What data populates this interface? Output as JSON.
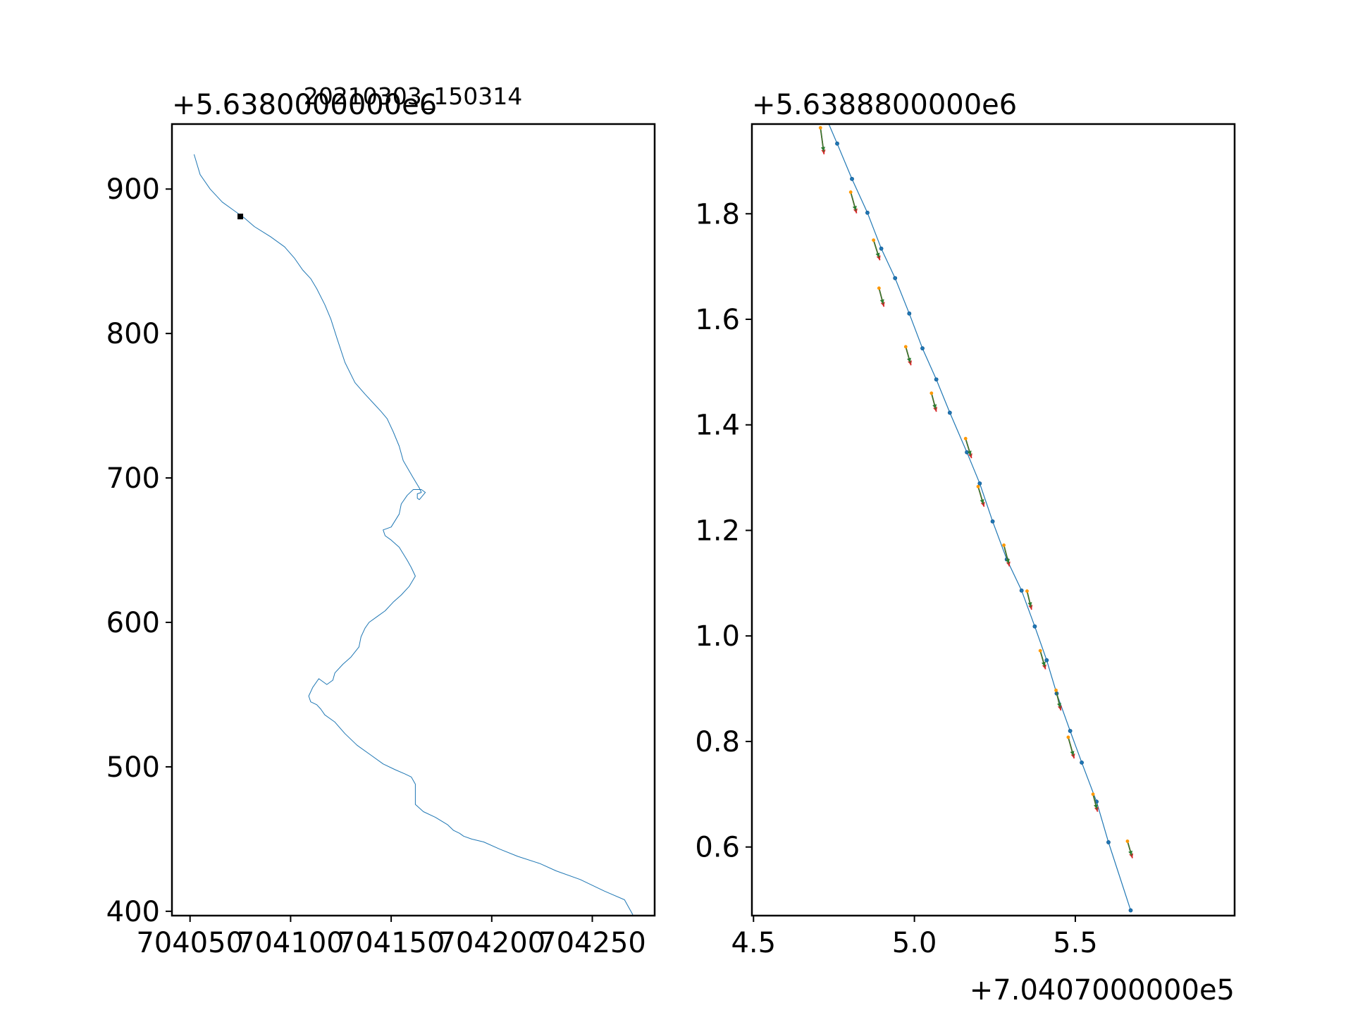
{
  "chart_data": [
    {
      "type": "line",
      "title": "20210303_150314",
      "offset_x": "",
      "offset_y": "+5.6380000000e6",
      "xlim": [
        704041,
        704281
      ],
      "ylim": [
        397,
        945
      ],
      "x_ticks": [
        704050,
        704100,
        704150,
        704200,
        704250
      ],
      "x_tick_labels": [
        "704050",
        "704100",
        "704150",
        "704200",
        "704250"
      ],
      "y_ticks": [
        400,
        500,
        600,
        700,
        800,
        900
      ],
      "y_tick_labels": [
        "400",
        "500",
        "600",
        "700",
        "800",
        "900"
      ],
      "grid": false,
      "series": [
        {
          "color": "#1f77b4",
          "x": [
            704052,
            704055,
            704060,
            704066,
            704072,
            704075,
            704077,
            704082,
            704090,
            704097,
            704102,
            704106,
            704110,
            704113,
            704117,
            704120,
            704123,
            704127,
            704132,
            704137,
            704141,
            704145,
            704148,
            704151,
            704154,
            704156,
            704161,
            704164,
            704165,
            704163,
            704163,
            704164,
            704167,
            704165,
            704161,
            704158,
            704155,
            704154,
            704150,
            704146,
            704147,
            704150,
            704154,
            704158,
            704160,
            704162,
            704159,
            704155,
            704151,
            704147,
            704143,
            704139,
            704137,
            704135,
            704134,
            704130,
            704126,
            704122,
            704121,
            704118,
            704114,
            704111,
            704109,
            704110,
            704113,
            704115,
            704117,
            704122,
            704127,
            704133,
            704140,
            704146,
            704152,
            704157,
            704160,
            704162,
            704162,
            704162,
            704166,
            704172,
            704178,
            704181,
            704184,
            704186,
            704190,
            704196,
            704204,
            704213,
            704224,
            704232,
            704244,
            704256,
            704266,
            704270,
            704271,
            704267,
            704268,
            704270
          ],
          "y": [
            924,
            910,
            900,
            891,
            885,
            882,
            880,
            874,
            867,
            860,
            852,
            844,
            838,
            831,
            820,
            810,
            797,
            780,
            766,
            758,
            752,
            746,
            741,
            732,
            722,
            712,
            700,
            693,
            690,
            689,
            686,
            685,
            690,
            692,
            692,
            688,
            682,
            675,
            666,
            664,
            660,
            657,
            652,
            643,
            638,
            632,
            625,
            619,
            614,
            608,
            604,
            600,
            596,
            590,
            583,
            576,
            571,
            565,
            560,
            557,
            561,
            555,
            549,
            545,
            543,
            540,
            536,
            531,
            523,
            515,
            508,
            502,
            498,
            495,
            493,
            488,
            480,
            474,
            469,
            465,
            460,
            456,
            454,
            452,
            450,
            448,
            443,
            438,
            433,
            428,
            422,
            414,
            408,
            398,
            393,
            386,
            384,
            384
          ]
        }
      ],
      "annotations": [
        {
          "type": "marker",
          "x": 704075,
          "y": 881,
          "color": "#000000"
        }
      ]
    },
    {
      "type": "line",
      "title": "",
      "offset_x": "+7.0407000000e5",
      "offset_y": "+5.6388800000e6",
      "xlim": [
        4.495,
        5.995
      ],
      "ylim": [
        0.47,
        1.97
      ],
      "x_ticks": [
        4.5,
        5.0,
        5.5
      ],
      "x_tick_labels": [
        "4.5",
        "5.0",
        "5.5"
      ],
      "y_ticks": [
        0.6,
        0.8,
        1.0,
        1.2,
        1.4,
        1.6,
        1.8
      ],
      "y_tick_labels": [
        "0.6",
        "0.8",
        "1.0",
        "1.2",
        "1.4",
        "1.6",
        "1.8"
      ],
      "grid": false,
      "series": [
        {
          "color": "#1f77b4",
          "x": [
            4.72,
            4.76,
            4.806,
            4.854,
            4.897,
            4.94,
            4.984,
            5.025,
            5.068,
            5.11,
            5.163,
            5.203,
            5.243,
            5.287,
            5.333,
            5.374,
            5.411,
            5.442,
            5.484,
            5.52,
            5.566,
            5.603,
            5.672
          ],
          "y": [
            1.99,
            1.933,
            1.866,
            1.802,
            1.734,
            1.678,
            1.611,
            1.545,
            1.486,
            1.423,
            1.348,
            1.289,
            1.217,
            1.145,
            1.086,
            1.018,
            0.954,
            0.891,
            0.82,
            0.76,
            0.686,
            0.609,
            0.48
          ],
          "markers": true
        }
      ],
      "arrows": [
        {
          "x": 4.708,
          "y": 1.963,
          "dx": 0.01,
          "dy": -0.045
        },
        {
          "x": 4.802,
          "y": 1.841,
          "dx": 0.016,
          "dy": -0.035
        },
        {
          "x": 4.873,
          "y": 1.75,
          "dx": 0.017,
          "dy": -0.033
        },
        {
          "x": 4.89,
          "y": 1.659,
          "dx": 0.013,
          "dy": -0.03
        },
        {
          "x": 4.973,
          "y": 1.548,
          "dx": 0.014,
          "dy": -0.03
        },
        {
          "x": 5.053,
          "y": 1.46,
          "dx": 0.013,
          "dy": -0.03
        },
        {
          "x": 5.159,
          "y": 1.374,
          "dx": 0.016,
          "dy": -0.032
        },
        {
          "x": 5.198,
          "y": 1.283,
          "dx": 0.016,
          "dy": -0.033
        },
        {
          "x": 5.278,
          "y": 1.172,
          "dx": 0.015,
          "dy": -0.035
        },
        {
          "x": 5.35,
          "y": 1.085,
          "dx": 0.012,
          "dy": -0.03
        },
        {
          "x": 5.391,
          "y": 0.972,
          "dx": 0.014,
          "dy": -0.03
        },
        {
          "x": 5.44,
          "y": 0.897,
          "dx": 0.013,
          "dy": -0.033
        },
        {
          "x": 5.478,
          "y": 0.808,
          "dx": 0.016,
          "dy": -0.035
        },
        {
          "x": 5.555,
          "y": 0.7,
          "dx": 0.012,
          "dy": -0.028
        },
        {
          "x": 5.662,
          "y": 0.611,
          "dx": 0.013,
          "dy": -0.027
        }
      ]
    }
  ]
}
